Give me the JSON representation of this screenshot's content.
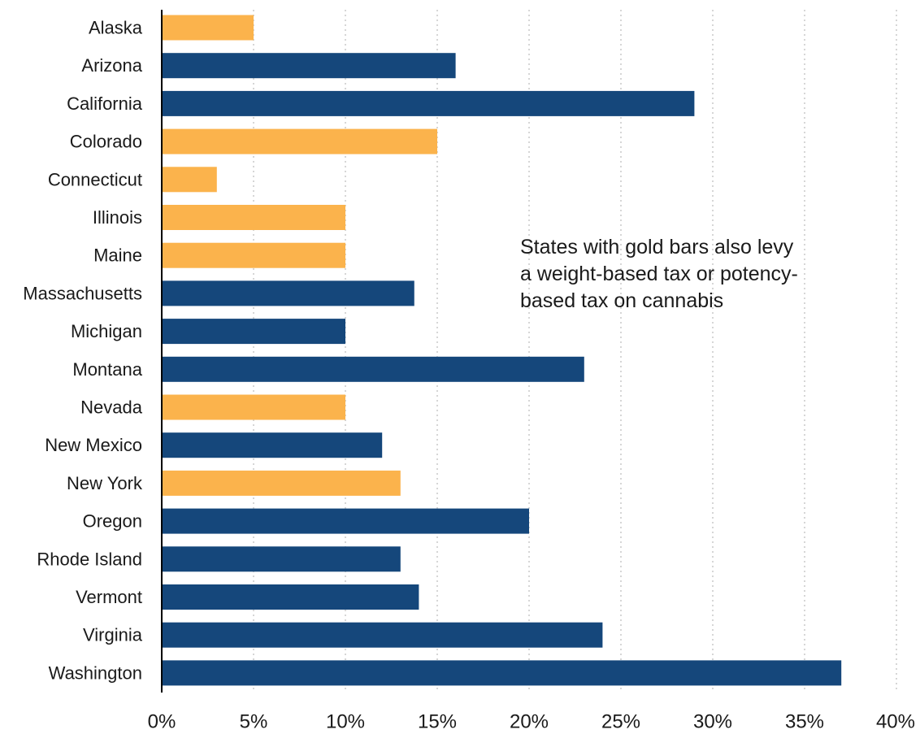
{
  "chart_data": {
    "type": "bar",
    "orientation": "horizontal",
    "title": "",
    "xlabel": "",
    "ylabel": "",
    "categories": [
      "Alaska",
      "Arizona",
      "California",
      "Colorado",
      "Connecticut",
      "Illinois",
      "Maine",
      "Massachusetts",
      "Michigan",
      "Montana",
      "Nevada",
      "New Mexico",
      "New York",
      "Oregon",
      "Rhode Island",
      "Vermont",
      "Virginia",
      "Washington"
    ],
    "values": [
      5,
      16,
      29,
      15,
      3,
      10,
      10,
      13.75,
      10,
      23,
      10,
      12,
      13,
      20,
      13,
      14,
      24,
      37
    ],
    "bar_colors": [
      "#fbb34c",
      "#15477b",
      "#15477b",
      "#fbb34c",
      "#fbb34c",
      "#fbb34c",
      "#fbb34c",
      "#15477b",
      "#15477b",
      "#15477b",
      "#fbb34c",
      "#15477b",
      "#fbb34c",
      "#15477b",
      "#15477b",
      "#15477b",
      "#15477b",
      "#15477b"
    ],
    "colors": {
      "gold": "#fbb34c",
      "blue": "#15477b"
    },
    "xlim": [
      0,
      40
    ],
    "x_ticks": [
      0,
      5,
      10,
      15,
      20,
      25,
      30,
      35,
      40
    ],
    "x_tick_labels": [
      "0%",
      "5%",
      "10%",
      "15%",
      "20%",
      "25%",
      "30%",
      "35%",
      "40%"
    ],
    "grid": "vertical-dotted",
    "annotation_lines": [
      "States with gold bars also levy",
      "a weight-based tax or potency-",
      "based tax on cannabis"
    ]
  }
}
